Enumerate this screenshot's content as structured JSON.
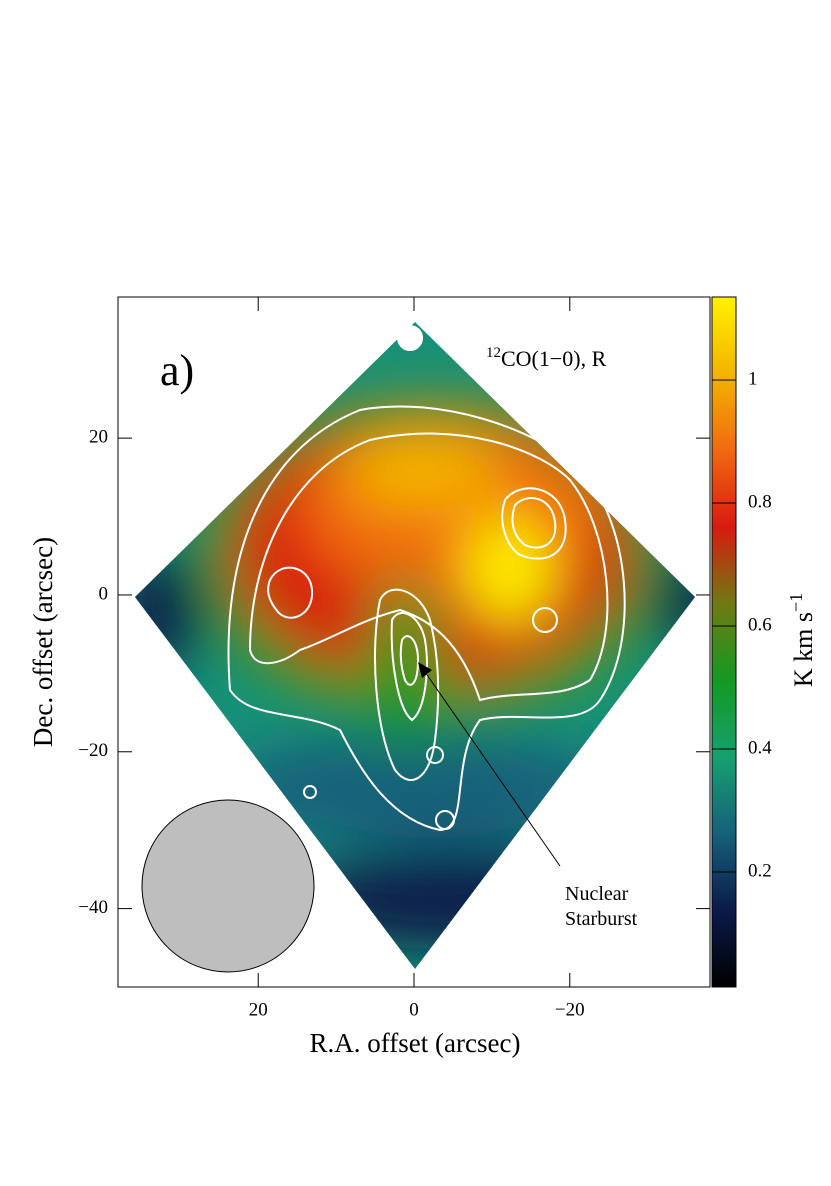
{
  "chart_data": {
    "type": "heatmap",
    "panel_label": "a)",
    "map_label_sup": "12",
    "map_label": "CO(1−0), R",
    "x_label": "R.A. offset (arcsec)",
    "y_label": "Dec. offset (arcsec)",
    "xlim": [
      38,
      -38
    ],
    "ylim": [
      -50,
      38
    ],
    "xticks": [
      20,
      0,
      {
        "value": -20,
        "label": "−20"
      }
    ],
    "yticks": [
      {
        "value": -40,
        "label": "−40"
      },
      {
        "value": -20,
        "label": "−20"
      },
      0,
      20
    ],
    "colorbar": {
      "label": "K km s",
      "label_sup": "−1",
      "ylim": [
        0.013,
        1.135
      ],
      "yticks": [
        0.2,
        0.4,
        0.6,
        0.8,
        1
      ],
      "colors": [
        "#000000",
        "#0a1a4a",
        "#16607a",
        "#17a070",
        "#139a22",
        "#6f7a12",
        "#d81a10",
        "#f06a10",
        "#f4b400",
        "#fff200"
      ]
    },
    "annotation": [
      "Nuclear",
      "Starburst"
    ]
  }
}
